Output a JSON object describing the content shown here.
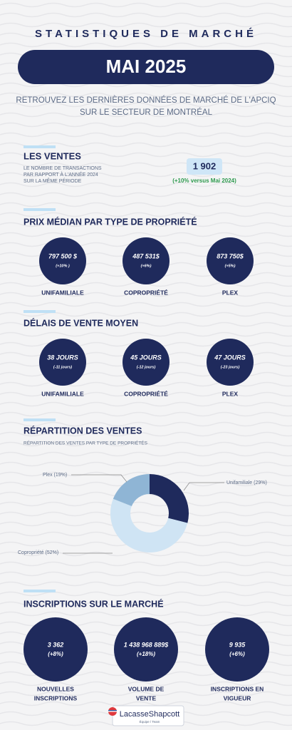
{
  "header": {
    "title": "STATISTIQUES DE MARCHÉ",
    "month": "MAI 2025",
    "subtitle": [
      "RETROUVEZ LES DERNIÈRES DONNÉES DE MARCHÉ DE L'APCIQ",
      "SUR LE SECTEUR DE MONTRÉAL"
    ]
  },
  "sales": {
    "heading": "LES VENTES",
    "description": [
      "LE NOMBRE DE TRANSACTIONS",
      "PAR RAPPORT À L'ANNÉE 2024",
      "SUR LA MÊME PÉRIODE"
    ],
    "value": "1 902",
    "change": "(+10% versus Mai 2024)"
  },
  "median_price": {
    "heading": "PRIX MÉDIAN PAR TYPE DE PROPRIÉTÉ",
    "items": [
      {
        "value": "797 500 $",
        "change": "(+10% )",
        "label": "UNIFAMILIALE"
      },
      {
        "value": "487 531$",
        "change": "(+6%)",
        "label": "COPROPRIÉTÉ"
      },
      {
        "value": "873 750$",
        "change": "(+5%)",
        "label": "PLEX"
      }
    ]
  },
  "sale_delay": {
    "heading": "DÉLAIS DE VENTE MOYEN",
    "items": [
      {
        "value": "38 JOURS",
        "change": "(-11 jours)",
        "label": "UNIFAMILIALE"
      },
      {
        "value": "45 JOURS",
        "change": "(-12 jours)",
        "label": "COPROPRIÉTÉ"
      },
      {
        "value": "47 JOURS",
        "change": "(-23 jours)",
        "label": "PLEX"
      }
    ]
  },
  "distribution": {
    "heading": "RÉPARTITION DES VENTES",
    "subtitle": "RÉPARTITION DES VENTES PAR TYPE DE PROPRIÉTÉS",
    "segments": [
      {
        "label": "Unifamiliale (29%)",
        "value": 29,
        "color": "#1f2a5c"
      },
      {
        "label": "Copropriété (52%)",
        "value": 52,
        "color": "#cfe4f4"
      },
      {
        "label": "Plex (19%)",
        "value": 19,
        "color": "#8fb5d5"
      }
    ]
  },
  "listings": {
    "heading": "INSCRIPTIONS SUR LE MARCHÉ",
    "items": [
      {
        "value": "3 362",
        "change": "(+8%)",
        "label": [
          "NOUVELLES",
          "INSCRIPTIONS"
        ]
      },
      {
        "value": "1 438 968 889$",
        "change": "(+18%)",
        "label": [
          "VOLUME DE",
          "VENTE"
        ]
      },
      {
        "value": "9 935",
        "change": "(+6%)",
        "label": [
          "INSCRIPTIONS EN",
          "VIGUEUR"
        ]
      }
    ]
  },
  "footer": {
    "brand": "LacasseShapcott",
    "tagline": "Équipe / Team"
  }
}
